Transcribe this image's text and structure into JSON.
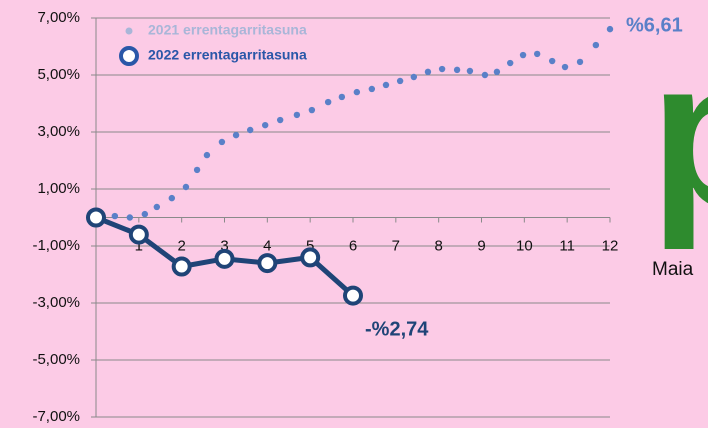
{
  "chart_data": {
    "type": "line",
    "series": [
      {
        "name": "2021 errentagarritasuna",
        "color": "#5a80c8",
        "legend_color": "#a9b6d8",
        "style": "dotted",
        "x": [
          0,
          0.44,
          0.79,
          1.14,
          1.42,
          1.77,
          2.1,
          2.36,
          2.59,
          2.94,
          3.27,
          3.6,
          3.95,
          4.3,
          4.69,
          5.04,
          5.42,
          5.74,
          6.09,
          6.44,
          6.77,
          7.1,
          7.42,
          7.75,
          8.08,
          8.43,
          8.73,
          9.08,
          9.36,
          9.67,
          9.97,
          10.3,
          10.65,
          10.95,
          11.3,
          11.67,
          12
        ],
        "values": [
          0,
          0.05,
          0,
          0.12,
          0.37,
          0.68,
          1.07,
          1.67,
          2.19,
          2.65,
          2.89,
          3.07,
          3.24,
          3.42,
          3.6,
          3.77,
          4.05,
          4.23,
          4.4,
          4.51,
          4.65,
          4.79,
          4.93,
          5.11,
          5.21,
          5.18,
          5.14,
          5,
          5.11,
          5.42,
          5.7,
          5.74,
          5.49,
          5.28,
          5.46,
          6.05,
          6.61
        ]
      },
      {
        "name": "2022 errentagarritasuna",
        "color": "#1f4477",
        "legend_color": "#2a57a8",
        "style": "solid-markers",
        "x": [
          0,
          1,
          2,
          3,
          4,
          5,
          6
        ],
        "values": [
          0,
          -0.6,
          -1.72,
          -1.45,
          -1.6,
          -1.4,
          -2.74
        ]
      }
    ],
    "xlim": [
      0,
      12
    ],
    "xticks": [
      1,
      2,
      3,
      4,
      5,
      6,
      7,
      8,
      9,
      10,
      11,
      12
    ],
    "ylim": [
      -7,
      7
    ],
    "yticks": [
      {
        "value": -7,
        "label": "-7,00%"
      },
      {
        "value": -5,
        "label": "-5,00%"
      },
      {
        "value": -3,
        "label": "-3,00%"
      },
      {
        "value": -1,
        "label": "-1,00%"
      },
      {
        "value": 1,
        "label": "1,00%"
      },
      {
        "value": 3,
        "label": "3,00%"
      },
      {
        "value": 5,
        "label": "5,00%"
      },
      {
        "value": 7,
        "label": "7,00%"
      }
    ],
    "grid": true,
    "legend": "upper left",
    "annotations": [
      "%6,61",
      "-%2,74"
    ]
  },
  "logo": {
    "letter": "p",
    "text": "Maia"
  }
}
